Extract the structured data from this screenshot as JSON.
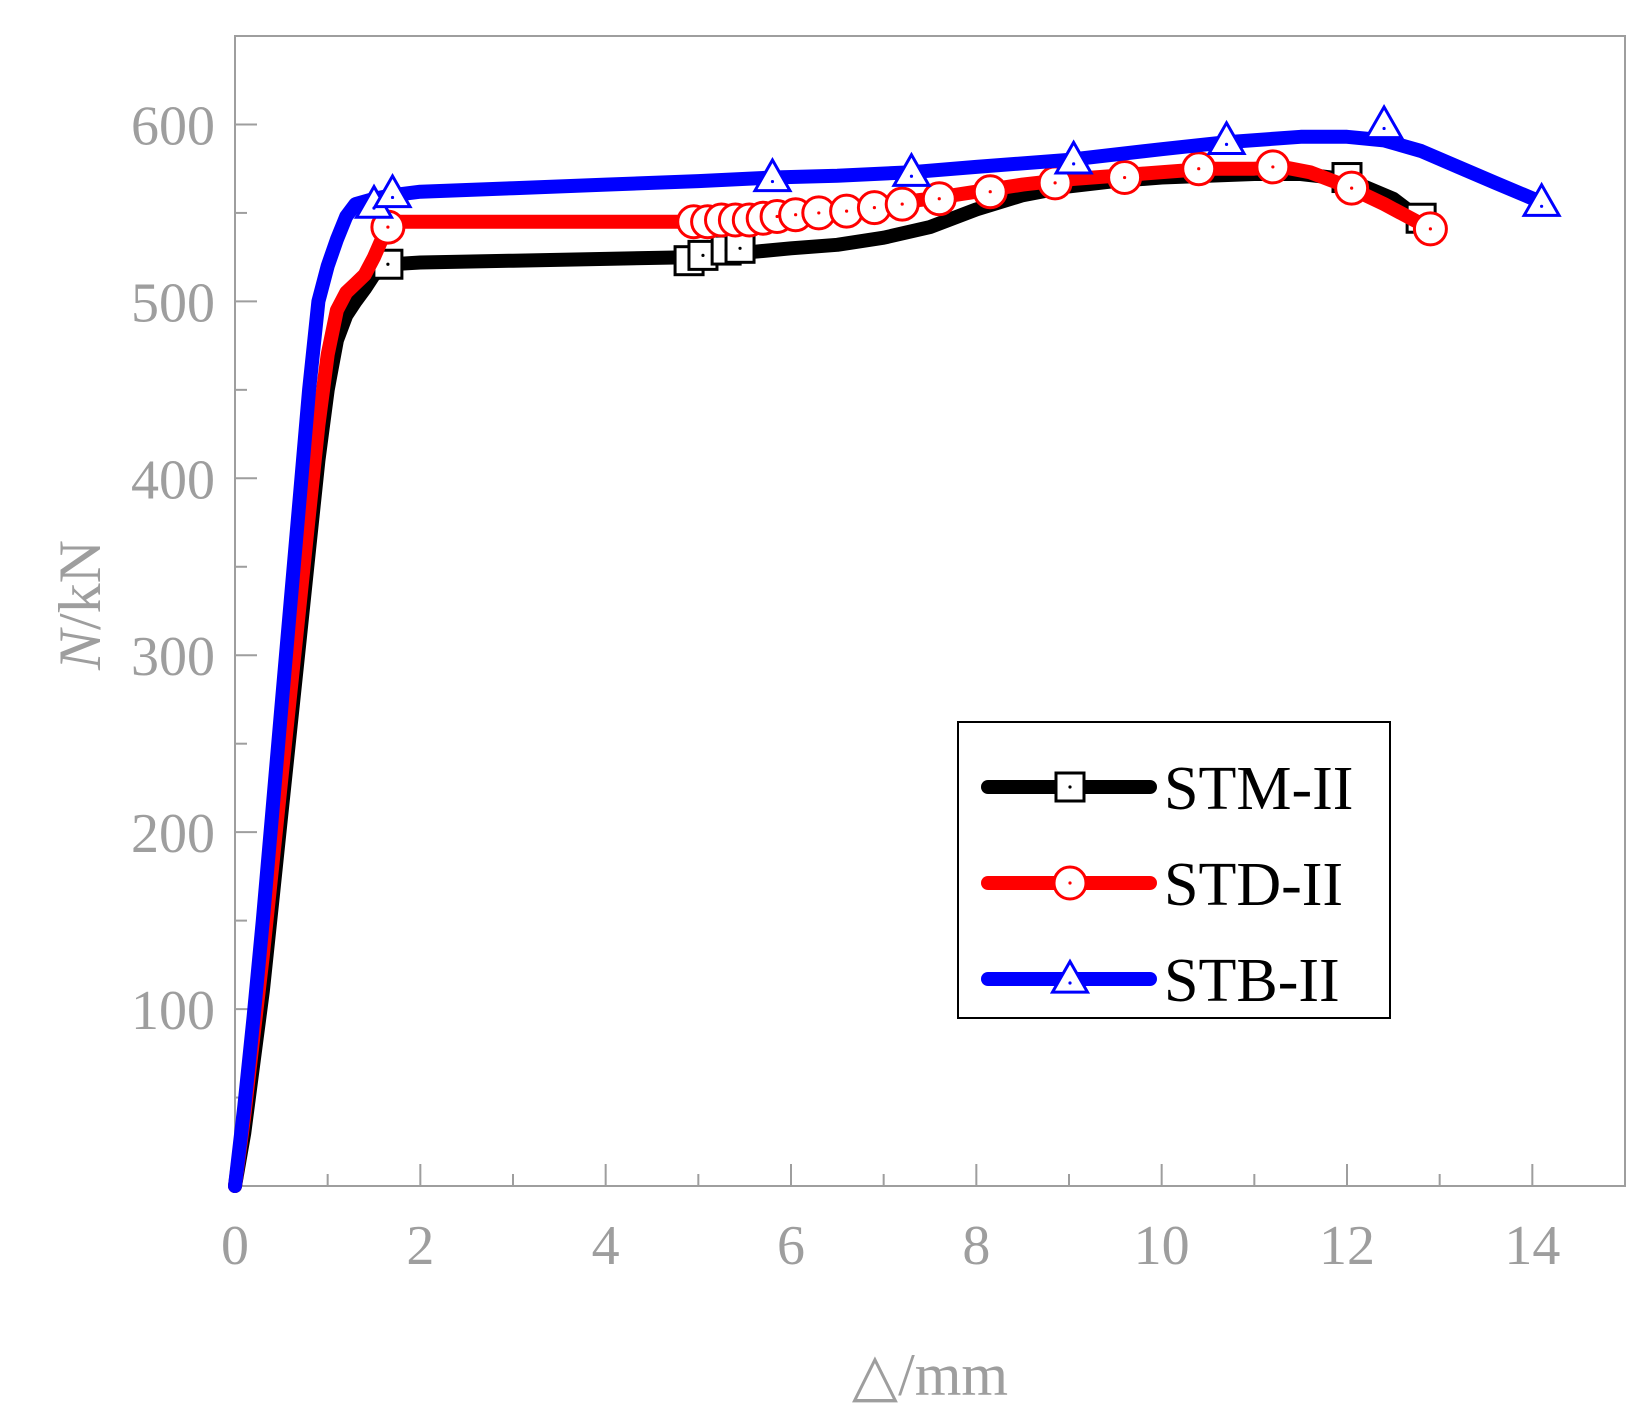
{
  "chart_data": {
    "type": "line",
    "title": "",
    "xlabel": "△/mm",
    "ylabel_italic": "N",
    "ylabel_rest": "/kN",
    "xlim": [
      0,
      15
    ],
    "ylim": [
      0,
      650
    ],
    "x_ticks": [
      0,
      2,
      4,
      6,
      8,
      10,
      12,
      14
    ],
    "x_tick_labels": [
      "0",
      "2",
      "4",
      "6",
      "8",
      "10",
      "12",
      "14"
    ],
    "y_ticks": [
      100,
      200,
      300,
      400,
      500,
      600
    ],
    "y_tick_labels": [
      "100",
      "200",
      "300",
      "400",
      "500",
      "600"
    ],
    "grid": false,
    "legend_position": "center-right",
    "series": [
      {
        "name": "STM-II",
        "color": "#000000",
        "marker": "square",
        "x": [
          0,
          0.1,
          0.2,
          0.3,
          0.4,
          0.5,
          0.6,
          0.7,
          0.8,
          0.9,
          1.0,
          1.1,
          1.2,
          1.3,
          1.4,
          1.5,
          1.7,
          2.0,
          3.0,
          4.0,
          4.9,
          5.2,
          5.6,
          6.0,
          6.5,
          7.0,
          7.5,
          8.0,
          8.5,
          9.0,
          9.5,
          10.0,
          10.5,
          11.0,
          11.5,
          12.0,
          12.5,
          12.8
        ],
        "y": [
          0,
          30,
          70,
          110,
          160,
          210,
          260,
          310,
          360,
          410,
          450,
          478,
          492,
          500,
          507,
          515,
          521,
          522,
          523,
          524,
          525,
          527,
          528,
          530,
          532,
          536,
          542,
          552,
          560,
          565,
          568,
          570,
          571,
          572,
          572,
          569,
          558,
          546
        ],
        "markers": [
          [
            1.65,
            521
          ],
          [
            4.9,
            523
          ],
          [
            5.05,
            526
          ],
          [
            5.3,
            529
          ],
          [
            5.45,
            530
          ],
          [
            12.0,
            570
          ],
          [
            12.8,
            547
          ]
        ]
      },
      {
        "name": "STD-II",
        "color": "#ff0000",
        "marker": "circle",
        "x": [
          0,
          0.1,
          0.2,
          0.3,
          0.4,
          0.5,
          0.6,
          0.7,
          0.8,
          0.9,
          1.0,
          1.1,
          1.2,
          1.3,
          1.4,
          1.5,
          1.6,
          1.7,
          2.0,
          3.0,
          4.0,
          4.95,
          5.5,
          6.0,
          6.5,
          7.0,
          7.5,
          8.0,
          8.5,
          9.0,
          9.5,
          10.0,
          10.5,
          11.0,
          11.3,
          11.6,
          12.0,
          12.4,
          12.9
        ],
        "y": [
          0,
          40,
          85,
          130,
          180,
          230,
          280,
          330,
          380,
          430,
          470,
          495,
          505,
          510,
          515,
          525,
          537,
          545,
          545,
          545,
          545,
          545,
          547,
          549,
          552,
          555,
          558,
          562,
          566,
          569,
          571,
          573,
          575,
          575,
          576,
          573,
          565,
          555,
          541
        ],
        "markers": [
          [
            1.65,
            542
          ],
          [
            4.95,
            545
          ],
          [
            5.1,
            545
          ],
          [
            5.25,
            546
          ],
          [
            5.4,
            546
          ],
          [
            5.55,
            546
          ],
          [
            5.7,
            547
          ],
          [
            5.85,
            548
          ],
          [
            6.05,
            549
          ],
          [
            6.3,
            550
          ],
          [
            6.6,
            551
          ],
          [
            6.9,
            553
          ],
          [
            7.2,
            555
          ],
          [
            7.6,
            558
          ],
          [
            8.15,
            562
          ],
          [
            8.85,
            567
          ],
          [
            9.6,
            570
          ],
          [
            10.4,
            575
          ],
          [
            11.2,
            576
          ],
          [
            12.05,
            564
          ],
          [
            12.9,
            541
          ]
        ]
      },
      {
        "name": "STB-II",
        "color": "#0000ff",
        "marker": "triangle",
        "x": [
          0,
          0.1,
          0.2,
          0.3,
          0.4,
          0.5,
          0.6,
          0.7,
          0.8,
          0.9,
          1.0,
          1.1,
          1.2,
          1.3,
          1.5,
          1.7,
          2.0,
          3.0,
          4.0,
          5.0,
          5.8,
          6.5,
          7.3,
          8.0,
          9.0,
          10.0,
          10.7,
          11.5,
          12.0,
          12.4,
          12.8,
          13.2,
          13.6,
          14.1
        ],
        "y": [
          0,
          45,
          95,
          150,
          210,
          270,
          330,
          390,
          450,
          500,
          520,
          535,
          548,
          555,
          558,
          560,
          562,
          564,
          566,
          568,
          570,
          571,
          573,
          576,
          580,
          586,
          590,
          593,
          593,
          591,
          585,
          576,
          567,
          556
        ],
        "markers": [
          [
            1.5,
            555
          ],
          [
            1.7,
            561
          ],
          [
            5.8,
            570
          ],
          [
            7.3,
            573
          ],
          [
            9.05,
            580
          ],
          [
            10.7,
            591
          ],
          [
            12.4,
            600
          ],
          [
            14.1,
            556
          ]
        ]
      }
    ]
  }
}
